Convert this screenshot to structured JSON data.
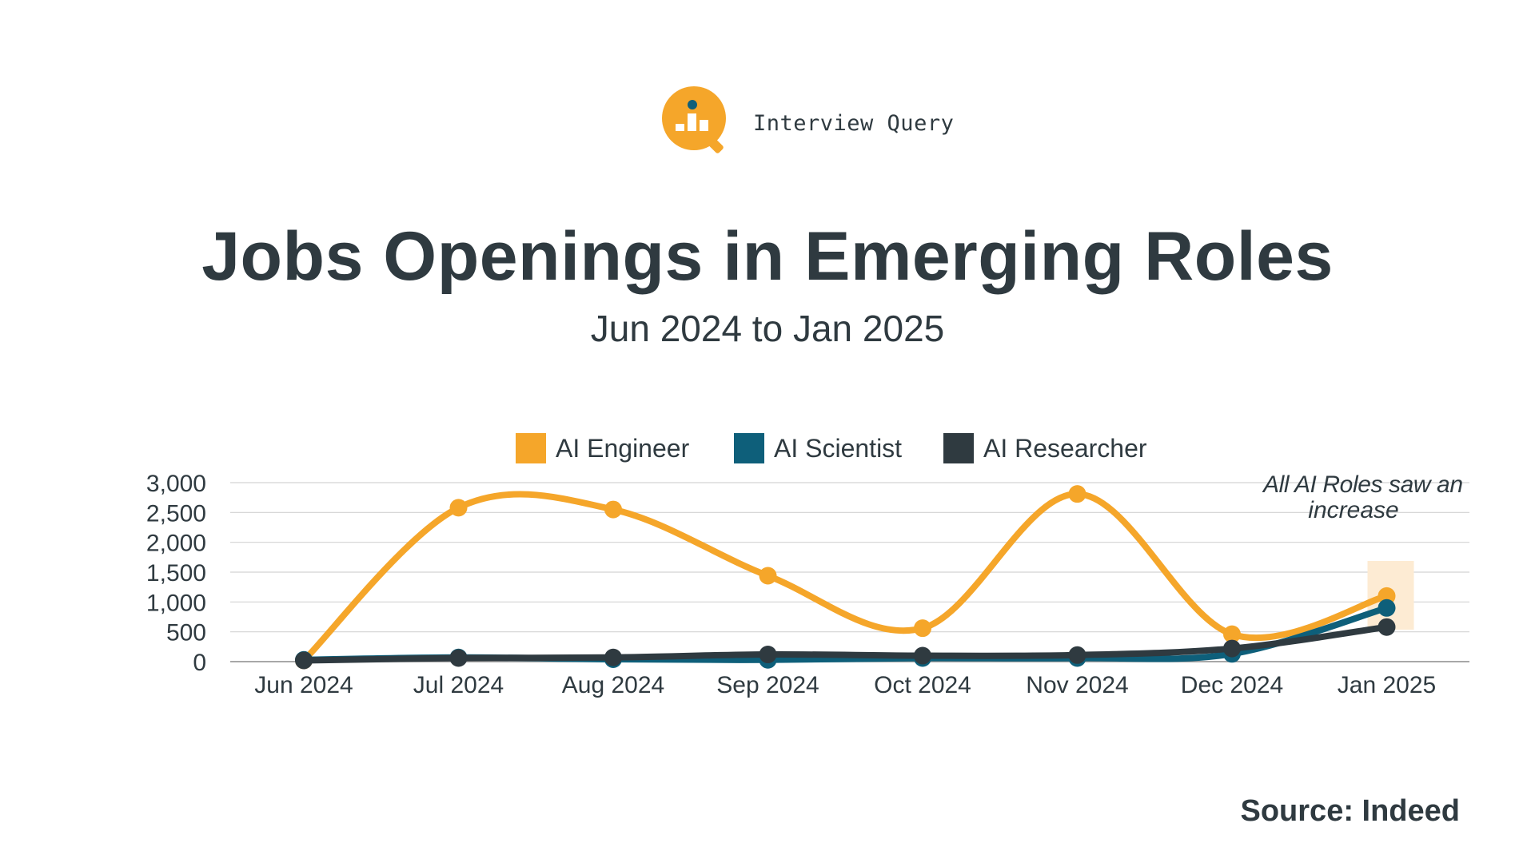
{
  "logo": {
    "text": "Interview Query",
    "icon": "magnifier-bar-icon",
    "color": "#f5a62a"
  },
  "title": "Jobs Openings in Emerging Roles",
  "subtitle": "Jun 2024 to Jan 2025",
  "source": "Source: Indeed",
  "chart_data": {
    "type": "line",
    "title": "Jobs Openings in Emerging Roles",
    "subtitle": "Jun 2024 to Jan 2025",
    "categories": [
      "Jun 2024",
      "Jul 2024",
      "Aug 2024",
      "Sep 2024",
      "Oct 2024",
      "Nov 2024",
      "Dec 2024",
      "Jan 2025"
    ],
    "ylim": [
      0,
      3000
    ],
    "yticks": [
      0,
      500,
      1000,
      1500,
      2000,
      2500,
      3000
    ],
    "ytick_labels": [
      "0",
      "500",
      "1,000",
      "1,500",
      "2,000",
      "2,500",
      "3,000"
    ],
    "grid": true,
    "legend_position": "top-center",
    "series": [
      {
        "name": "AI Engineer",
        "color": "#f5a62a",
        "values": [
          20,
          2580,
          2550,
          1440,
          560,
          2810,
          460,
          1100
        ]
      },
      {
        "name": "AI Scientist",
        "color": "#0e5f7a",
        "values": [
          30,
          70,
          40,
          30,
          60,
          60,
          130,
          900
        ]
      },
      {
        "name": "AI Researcher",
        "color": "#2f3a40",
        "values": [
          20,
          60,
          70,
          120,
          100,
          110,
          220,
          580
        ]
      }
    ],
    "annotation": {
      "text_line1": "All AI Roles saw an",
      "text_line2": "increase",
      "category": "Jan 2025",
      "highlight_color": "#fdebd3"
    }
  }
}
